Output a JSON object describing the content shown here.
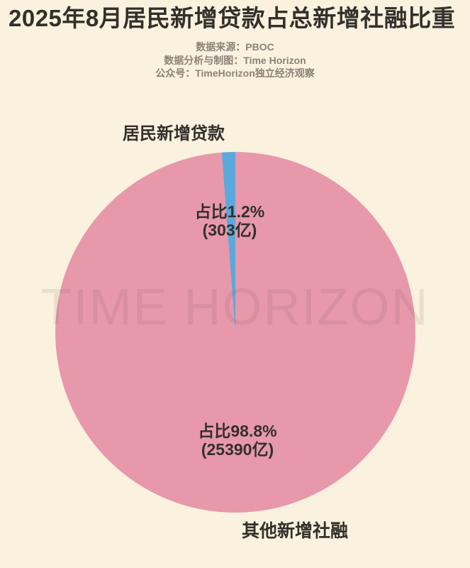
{
  "title": "2025年8月居民新增贷款占总新增社融比重",
  "subtitle_lines": [
    "数据来源：PBOC",
    "数据分析与制图：Time Horizon",
    "公众号：TimeHorizon独立经济观察"
  ],
  "watermark": "TIME HORIZON",
  "colors": {
    "background": "#faf2de",
    "title_text": "#33302b",
    "subtitle_text": "#8a8379",
    "label_text": "#33302b",
    "watermark_text": "rgba(80,70,55,0.10)"
  },
  "annotations": {
    "blue_slice_name": "居民新增贷款",
    "blue_slice_pct": "占比1.2%",
    "blue_slice_amount": "(303亿)",
    "pink_slice_pct": "占比98.8%",
    "pink_slice_amount": "(25390亿)",
    "pink_slice_name": "其他新增社融"
  },
  "chart_data": {
    "type": "pie",
    "title": "2025年8月居民新增贷款占总新增社融比重",
    "unit": "亿元",
    "slices": [
      {
        "label": "居民新增贷款",
        "percent": 1.2,
        "value": 303,
        "value_text": "占比1.2%",
        "amount_text": "(303亿)",
        "color": "#5ba9dc"
      },
      {
        "label": "其他新增社融",
        "percent": 98.8,
        "value": 25390,
        "value_text": "占比98.8%",
        "amount_text": "(25390亿)",
        "color": "#e898ab"
      }
    ],
    "start_angle_deg": 90,
    "direction": "counterclockwise",
    "source": "PBOC",
    "legend_position": "none",
    "labels_inside": true
  }
}
